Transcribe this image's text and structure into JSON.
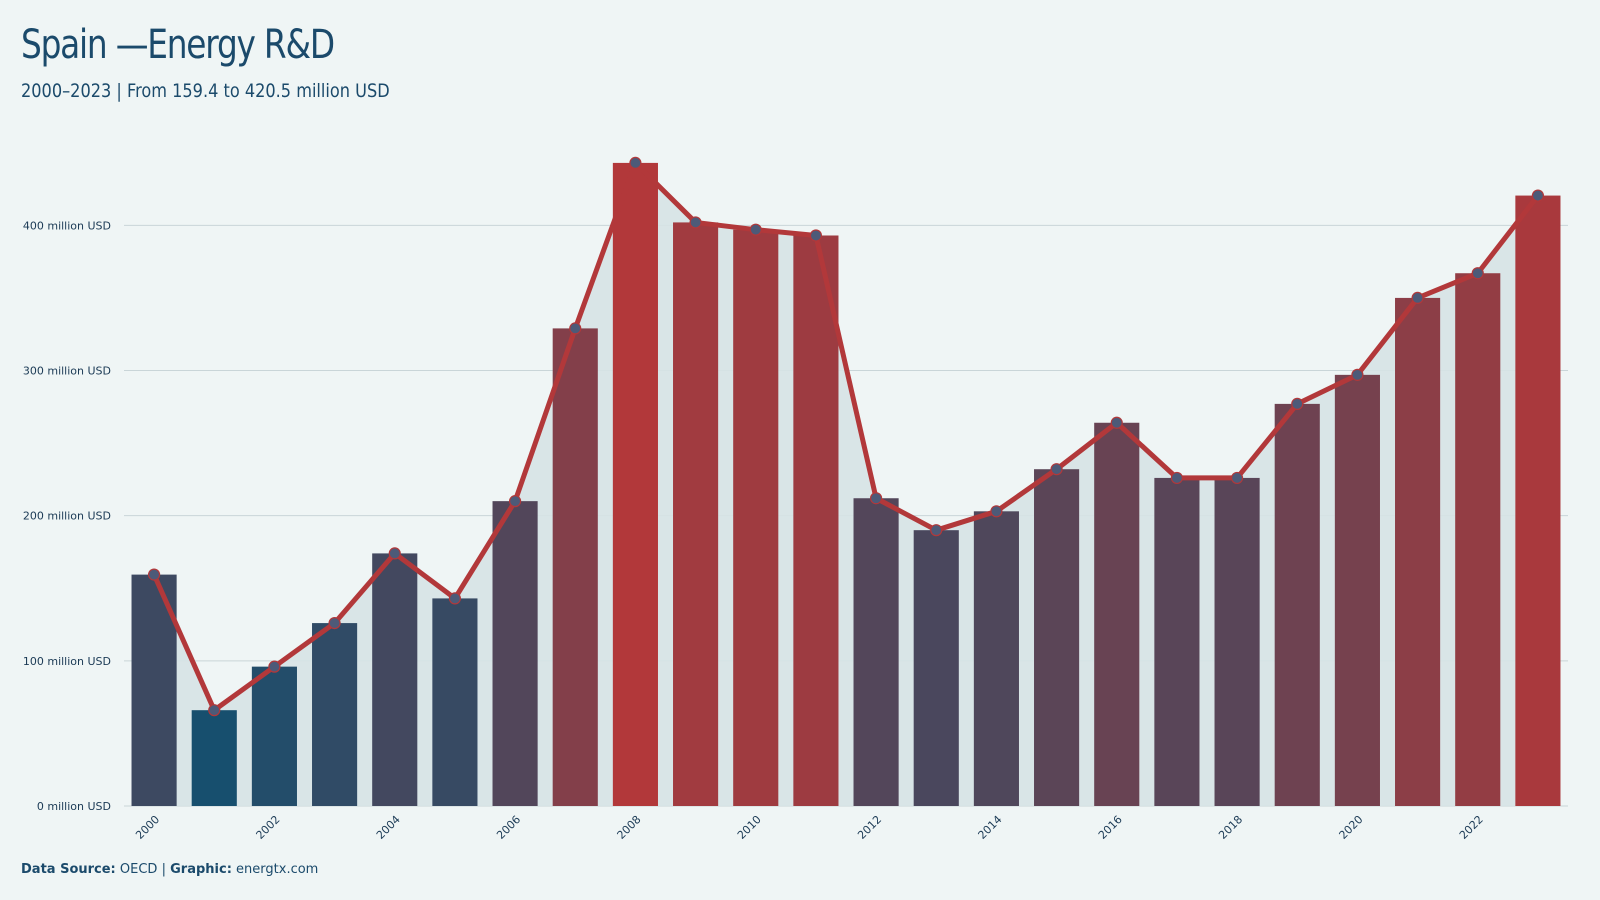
{
  "title": "Spain —Energy R&D",
  "subtitle": "2000–2023 | From 159.4 to 420.5 million USD",
  "footer": {
    "source_label": "Data Source:",
    "source_value": "OECD",
    "separator": "|",
    "graphic_label": "Graphic:",
    "graphic_value": "energtx.com"
  },
  "colors": {
    "low": "#174f6e",
    "high": "#b2383a",
    "line": "#b2383a",
    "marker": "#4d5a78",
    "area": "#d6e3e6",
    "grid": "#c9d5d8"
  },
  "chart_data": {
    "type": "bar",
    "overlay": "line",
    "x": [
      2000,
      2001,
      2002,
      2003,
      2004,
      2005,
      2006,
      2007,
      2008,
      2009,
      2010,
      2011,
      2012,
      2013,
      2014,
      2015,
      2016,
      2017,
      2018,
      2019,
      2020,
      2021,
      2022,
      2023
    ],
    "values": [
      159.4,
      66,
      96,
      126,
      174,
      143,
      210,
      329,
      443,
      402,
      397,
      393,
      212,
      190,
      203,
      232,
      264,
      226,
      226,
      277,
      297,
      350,
      367,
      420.5
    ],
    "unit": "million USD",
    "ylim": [
      0,
      445
    ],
    "yticks": [
      0,
      100,
      200,
      300,
      400
    ],
    "ytick_labels": [
      "0 million USD",
      "100 million USD",
      "200 million USD",
      "300 million USD",
      "400 million USD"
    ],
    "xtick_labels": [
      "2000",
      "2002",
      "2004",
      "2006",
      "2008",
      "2010",
      "2012",
      "2014",
      "2016",
      "2018",
      "2020",
      "2022"
    ],
    "grid": true,
    "legend": "none"
  }
}
